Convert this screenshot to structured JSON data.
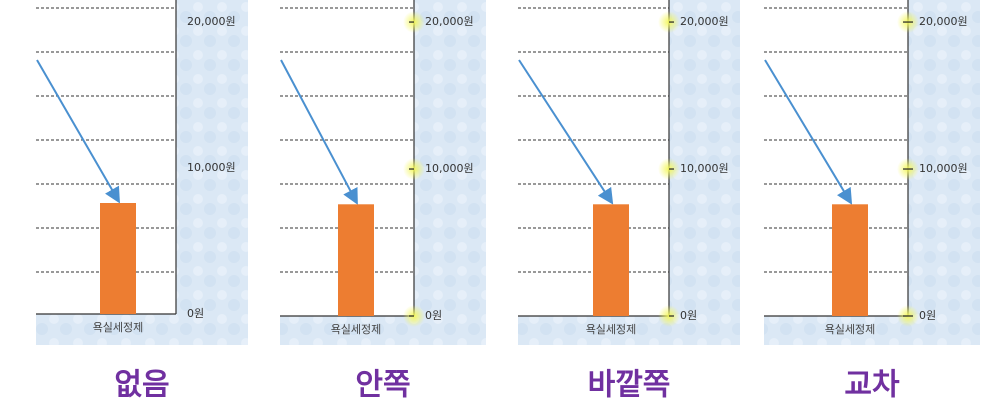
{
  "chart_data": [
    {
      "type": "bar",
      "caption": "없음",
      "tick_marks": "none",
      "categories": [
        "욕실세정제"
      ],
      "values": [
        7600
      ],
      "color": "#ed7d31",
      "ylim": [
        0,
        21500
      ],
      "yticks": [
        {
          "value": 0,
          "label": "0원"
        },
        {
          "value": 10000,
          "label": "10,000원"
        },
        {
          "value": 20000,
          "label": "20,000원"
        }
      ]
    },
    {
      "type": "bar",
      "caption": "안쪽",
      "tick_marks": "inside",
      "categories": [
        "욕실세정제"
      ],
      "values": [
        7600
      ],
      "color": "#ed7d31",
      "ylim": [
        0,
        21500
      ],
      "yticks": [
        {
          "value": 0,
          "label": "0원"
        },
        {
          "value": 10000,
          "label": "10,000원"
        },
        {
          "value": 20000,
          "label": "20,000원"
        }
      ]
    },
    {
      "type": "bar",
      "caption": "바깥쪽",
      "tick_marks": "outside",
      "categories": [
        "욕실세정제"
      ],
      "values": [
        7600
      ],
      "color": "#ed7d31",
      "ylim": [
        0,
        21500
      ],
      "yticks": [
        {
          "value": 0,
          "label": "0원"
        },
        {
          "value": 10000,
          "label": "10,000원"
        },
        {
          "value": 20000,
          "label": "20,000원"
        }
      ]
    },
    {
      "type": "bar",
      "caption": "교차",
      "tick_marks": "cross",
      "categories": [
        "욕실세정제"
      ],
      "values": [
        7600
      ],
      "color": "#ed7d31",
      "ylim": [
        0,
        21500
      ],
      "yticks": [
        {
          "value": 0,
          "label": "0원"
        },
        {
          "value": 10000,
          "label": "10,000원"
        },
        {
          "value": 20000,
          "label": "20,000원"
        }
      ]
    }
  ]
}
